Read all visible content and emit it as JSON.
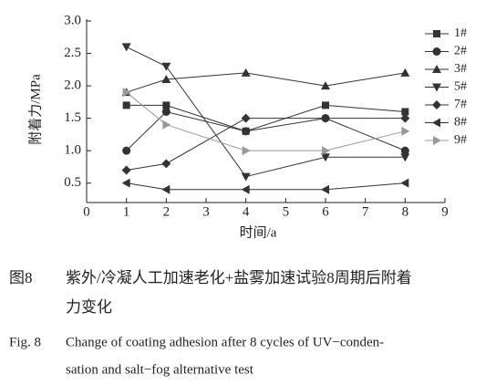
{
  "chart_data": {
    "type": "line",
    "x_label": "时间/a",
    "y_label": "附着力/MPa",
    "x": [
      1,
      2,
      4,
      6,
      8
    ],
    "series": [
      {
        "name": "1#",
        "color": "#333333",
        "marker": "square",
        "values": [
          1.7,
          1.7,
          1.3,
          1.7,
          1.6
        ]
      },
      {
        "name": "2#",
        "color": "#333333",
        "marker": "circle",
        "values": [
          1.0,
          1.6,
          1.3,
          1.5,
          1.0
        ]
      },
      {
        "name": "3#",
        "color": "#333333",
        "marker": "triangle-up",
        "values": [
          1.9,
          2.1,
          2.2,
          2.0,
          2.2
        ]
      },
      {
        "name": "5#",
        "color": "#333333",
        "marker": "triangle-down",
        "values": [
          2.6,
          2.3,
          0.6,
          0.9,
          0.9
        ]
      },
      {
        "name": "7#",
        "color": "#333333",
        "marker": "diamond",
        "values": [
          0.7,
          0.8,
          1.5,
          1.5,
          1.5
        ]
      },
      {
        "name": "8#",
        "color": "#333333",
        "marker": "triangle-left",
        "values": [
          0.5,
          0.4,
          0.4,
          0.4,
          0.5
        ]
      },
      {
        "name": "9#",
        "color": "#999999",
        "marker": "triangle-right",
        "values": [
          1.9,
          1.4,
          1.0,
          1.0,
          1.3
        ]
      }
    ],
    "xlim": [
      0,
      9
    ],
    "xticks": [
      0,
      1,
      2,
      3,
      4,
      5,
      6,
      7,
      8,
      9
    ],
    "ylim": [
      0.2,
      3.0
    ],
    "yticks": [
      0.5,
      {
        "value": 1.0,
        "label": "1.0"
      },
      1.5,
      {
        "value": 2.0,
        "label": "2.0"
      },
      2.5,
      {
        "value": 3.0,
        "label": "3.0"
      }
    ],
    "grid": false,
    "legend": "right"
  },
  "caption": {
    "cn_label": "图8",
    "cn_lines": [
      "紫外/冷凝人工加速老化+盐雾加速试验8周期后附着",
      "力变化"
    ],
    "en_label": "Fig. 8",
    "en_lines": [
      "Change of coating adhesion after 8 cycles of UV−conden-",
      "sation and salt−fog alternative test"
    ]
  }
}
